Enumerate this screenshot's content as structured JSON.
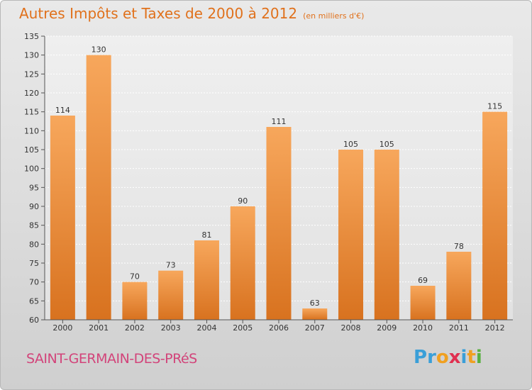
{
  "title": "Autres Impôts et Taxes de 2000 à 2012",
  "unit_note": "(en milliers d'€)",
  "commune": "SAINT-GERMAIN-DES-PRéS",
  "logo": {
    "text": "Proxiti",
    "letters": [
      "P",
      "r",
      "o",
      "x",
      "i",
      "t",
      "i"
    ],
    "colors": [
      "#3a9fd8",
      "#3a9fd8",
      "#f0a020",
      "#e03050",
      "#3a9fd8",
      "#f0a020",
      "#58b040"
    ]
  },
  "colors": {
    "accent": "#e0711c",
    "bar_top": "#f7a75c",
    "bar_bottom": "#d8721f",
    "commune": "#d2447a"
  },
  "chart_data": {
    "type": "bar",
    "categories": [
      "2000",
      "2001",
      "2002",
      "2003",
      "2004",
      "2005",
      "2006",
      "2007",
      "2008",
      "2009",
      "2010",
      "2011",
      "2012"
    ],
    "values": [
      114,
      130,
      70,
      73,
      81,
      90,
      111,
      63,
      105,
      105,
      69,
      78,
      115
    ],
    "title": "Autres Impôts et Taxes de 2000 à 2012",
    "xlabel": "",
    "ylabel": "",
    "ylim": [
      60,
      135
    ],
    "yticks": [
      60,
      65,
      70,
      75,
      80,
      85,
      90,
      95,
      100,
      105,
      110,
      115,
      120,
      125,
      130,
      135
    ],
    "grid": true,
    "legend": "none"
  }
}
